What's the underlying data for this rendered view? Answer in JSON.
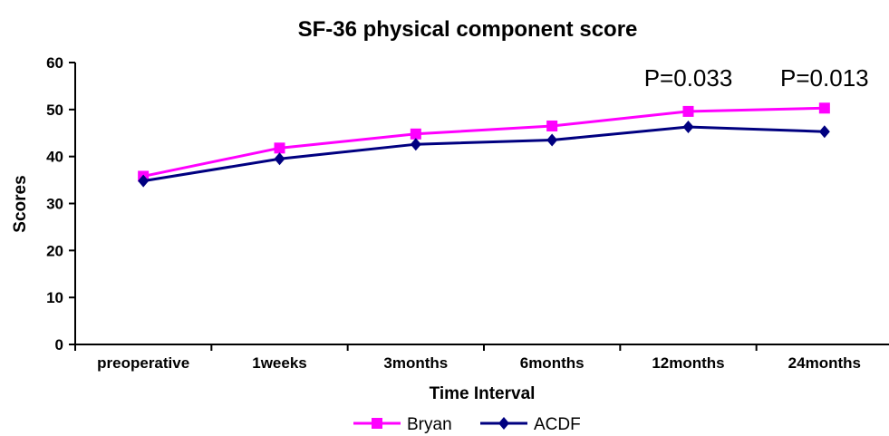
{
  "chart_data": {
    "type": "line",
    "title": "SF-36 physical component score",
    "xlabel": "Time Interval",
    "ylabel": "Scores",
    "categories": [
      "preoperative",
      "1weeks",
      "3months",
      "6months",
      "12months",
      "24months"
    ],
    "ylim": [
      0,
      60
    ],
    "yticks": [
      0,
      10,
      20,
      30,
      40,
      50,
      60
    ],
    "grid": false,
    "legend_position": "bottom",
    "series": [
      {
        "name": "Bryan",
        "values": [
          35.8,
          41.8,
          44.8,
          46.5,
          49.6,
          50.3
        ],
        "color": "#ff00ff",
        "marker": "square"
      },
      {
        "name": "ACDF",
        "values": [
          34.8,
          39.5,
          42.6,
          43.5,
          46.3,
          45.3
        ],
        "color": "#000080",
        "marker": "diamond"
      }
    ],
    "annotations": [
      {
        "text": "P=0.033",
        "category": "12months"
      },
      {
        "text": "P=0.013",
        "category": "24months"
      }
    ]
  }
}
